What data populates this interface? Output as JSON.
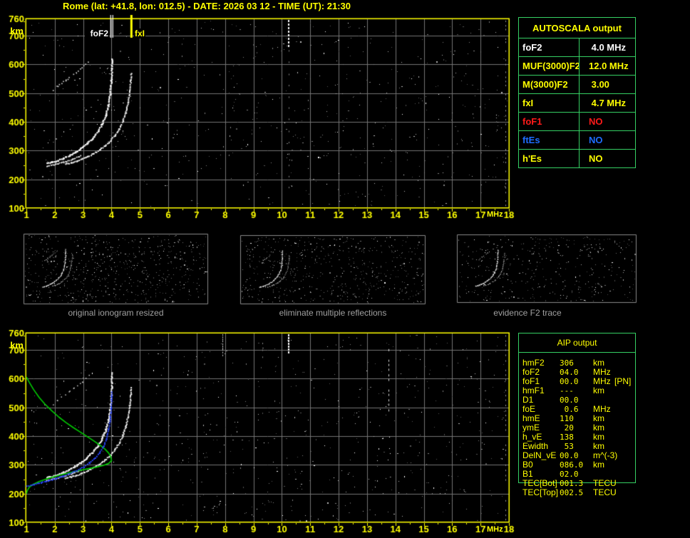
{
  "title": "Rome (lat: +41.8, lon: 012.5) - DATE: 2026 03 12 - TIME (UT): 21:30",
  "top_plot": {
    "y_unit": "km",
    "x_unit": "MHz",
    "y_ticks": [
      "760",
      "700",
      "600",
      "500",
      "400",
      "300",
      "200",
      "100"
    ],
    "x_ticks": [
      "1",
      "2",
      "3",
      "4",
      "5",
      "6",
      "7",
      "8",
      "9",
      "10",
      "11",
      "12",
      "13",
      "14",
      "15",
      "16",
      "17",
      "18"
    ],
    "markers": {
      "fof2_label": "foF2",
      "fof2_freq": 4.0,
      "fxi_label": "fxI",
      "fxi_freq": 4.7
    }
  },
  "bottom_plot": {
    "y_unit": "km",
    "x_unit": "MHz",
    "y_ticks": [
      "760",
      "700",
      "600",
      "500",
      "400",
      "300",
      "200",
      "100"
    ],
    "x_ticks": [
      "1",
      "2",
      "3",
      "4",
      "5",
      "6",
      "7",
      "8",
      "9",
      "10",
      "11",
      "12",
      "13",
      "14",
      "15",
      "16",
      "17",
      "18"
    ]
  },
  "panels": [
    {
      "caption": "original ionogram resized"
    },
    {
      "caption": "eliminate multiple reflections"
    },
    {
      "caption": "evidence F2 trace"
    }
  ],
  "autoscala_table": {
    "title": "AUTOSCALA output",
    "rows": [
      {
        "label": "foF2",
        "value": " 4.0 MHz",
        "color": "#ffffff"
      },
      {
        "label": "MUF(3000)F2",
        "value": "12.0 MHz",
        "color": "#ffff00"
      },
      {
        "label": "M(3000)F2",
        "value": " 3.00",
        "color": "#ffff00"
      },
      {
        "label": "fxI",
        "value": " 4.7 MHz",
        "color": "#ffff00"
      },
      {
        "label": "foF1",
        "value": "NO",
        "color": "#ff1a1a"
      },
      {
        "label": "ftEs",
        "value": "NO",
        "color": "#1e6eff"
      },
      {
        "label": "h'Es",
        "value": "NO",
        "color": "#ffff00"
      }
    ]
  },
  "aip_table": {
    "title": "AIP output",
    "rows": [
      {
        "label": "hmF2",
        "value": "306",
        "unit": "km",
        "extra": ""
      },
      {
        "label": "foF2",
        "value": "04.0",
        "unit": "MHz",
        "extra": ""
      },
      {
        "label": "foF1",
        "value": "00.0",
        "unit": "MHz",
        "extra": "[PN]"
      },
      {
        "label": "hmF1",
        "value": "---",
        "unit": "km",
        "extra": ""
      },
      {
        "label": "D1",
        "value": "00.0",
        "unit": "",
        "extra": ""
      },
      {
        "label": "foE",
        "value": " 0.6",
        "unit": "MHz",
        "extra": ""
      },
      {
        "label": "hmE",
        "value": "110",
        "unit": "km",
        "extra": ""
      },
      {
        "label": "ymE",
        "value": " 20",
        "unit": "km",
        "extra": ""
      },
      {
        "label": "h_vE",
        "value": "138",
        "unit": "km",
        "extra": ""
      },
      {
        "label": "Ewidth",
        "value": " 53",
        "unit": "km",
        "extra": ""
      },
      {
        "label": "DelN_vE",
        "value": "00.0",
        "unit": "m^(-3)",
        "extra": ""
      },
      {
        "label": "B0",
        "value": "086.0",
        "unit": "km",
        "extra": ""
      },
      {
        "label": "B1",
        "value": "02.0",
        "unit": "",
        "extra": ""
      },
      {
        "label": "TEC[Bot]",
        "value": "001.3",
        "unit": "TECU",
        "extra": ""
      },
      {
        "label": "TEC[Top]",
        "value": "002.5",
        "unit": "TECU",
        "extra": ""
      }
    ]
  },
  "colors": {
    "axis_yellow": "#ffff00",
    "grid_gray": "#757575",
    "table_border_green": "#35cf63",
    "profile_green": "#00cc00",
    "restored_blue": "#2b46ff",
    "trace_white": "#f8f8f8",
    "caption_gray": "#a0a0a0"
  },
  "chart_data": {
    "type": "scatter",
    "title": "ionogram",
    "xlabel": "MHz",
    "ylabel": "km",
    "xlim": [
      1,
      18
    ],
    "ylim": [
      100,
      760
    ],
    "series": [
      {
        "name": "o_trace",
        "points": [
          [
            1.7,
            257
          ],
          [
            1.9,
            262
          ],
          [
            2.1,
            268
          ],
          [
            2.3,
            276
          ],
          [
            2.5,
            285
          ],
          [
            2.7,
            297
          ],
          [
            2.9,
            310
          ],
          [
            3.1,
            326
          ],
          [
            3.3,
            345
          ],
          [
            3.5,
            368
          ],
          [
            3.65,
            395
          ],
          [
            3.78,
            425
          ],
          [
            3.87,
            460
          ],
          [
            3.93,
            500
          ],
          [
            3.97,
            545
          ],
          [
            3.99,
            590
          ],
          [
            3.995,
            622
          ]
        ]
      },
      {
        "name": "x_trace",
        "points": [
          [
            2.35,
            255
          ],
          [
            2.55,
            260
          ],
          [
            2.75,
            266
          ],
          [
            2.95,
            273
          ],
          [
            3.15,
            282
          ],
          [
            3.35,
            292
          ],
          [
            3.55,
            304
          ],
          [
            3.75,
            319
          ],
          [
            3.95,
            337
          ],
          [
            4.1,
            355
          ],
          [
            4.25,
            378
          ],
          [
            4.38,
            405
          ],
          [
            4.48,
            435
          ],
          [
            4.56,
            470
          ],
          [
            4.62,
            510
          ],
          [
            4.66,
            548
          ],
          [
            4.68,
            572
          ]
        ]
      },
      {
        "name": "tip_band",
        "points": [
          [
            1.7,
            254
          ],
          [
            2.0,
            260
          ],
          [
            2.3,
            268
          ],
          [
            2.6,
            278
          ],
          [
            2.9,
            290
          ]
        ]
      },
      {
        "name": "second_hop_echo",
        "points": [
          [
            1.95,
            512
          ],
          [
            2.08,
            524
          ],
          [
            2.22,
            536
          ],
          [
            2.36,
            547
          ],
          [
            2.5,
            557
          ],
          [
            2.65,
            568
          ],
          [
            2.8,
            579
          ],
          [
            2.95,
            591
          ],
          [
            3.08,
            602
          ],
          [
            3.18,
            612
          ]
        ]
      },
      {
        "name": "electron_density_profile",
        "points": [
          [
            1.0,
            606
          ],
          [
            1.1,
            588
          ],
          [
            1.25,
            563
          ],
          [
            1.45,
            535
          ],
          [
            1.65,
            512
          ],
          [
            1.9,
            488
          ],
          [
            2.15,
            466
          ],
          [
            2.4,
            447
          ],
          [
            2.65,
            430
          ],
          [
            2.9,
            414
          ],
          [
            3.15,
            398
          ],
          [
            3.4,
            382
          ],
          [
            3.6,
            368
          ],
          [
            3.78,
            354
          ],
          [
            3.9,
            341
          ],
          [
            3.97,
            329
          ],
          [
            4.0,
            315
          ],
          [
            3.9,
            305
          ],
          [
            3.7,
            298
          ],
          [
            3.45,
            292
          ],
          [
            3.2,
            287
          ],
          [
            2.95,
            282
          ],
          [
            2.7,
            277
          ],
          [
            2.45,
            271
          ],
          [
            2.2,
            265
          ],
          [
            1.95,
            258
          ],
          [
            1.7,
            251
          ],
          [
            1.45,
            242
          ],
          [
            1.25,
            233
          ],
          [
            1.1,
            222
          ],
          [
            1.03,
            210
          ],
          [
            1.0,
            200
          ]
        ]
      },
      {
        "name": "restored_o_trace",
        "points": [
          [
            1.0,
            228
          ],
          [
            1.25,
            234
          ],
          [
            1.5,
            240
          ],
          [
            1.75,
            247
          ],
          [
            2.0,
            254
          ],
          [
            2.25,
            262
          ],
          [
            2.5,
            271
          ],
          [
            2.75,
            282
          ],
          [
            3.0,
            295
          ],
          [
            3.2,
            309
          ],
          [
            3.4,
            326
          ],
          [
            3.55,
            344
          ],
          [
            3.7,
            367
          ],
          [
            3.8,
            393
          ],
          [
            3.88,
            425
          ],
          [
            3.93,
            460
          ],
          [
            3.96,
            500
          ],
          [
            3.975,
            530
          ],
          [
            3.985,
            555
          ]
        ]
      }
    ]
  }
}
